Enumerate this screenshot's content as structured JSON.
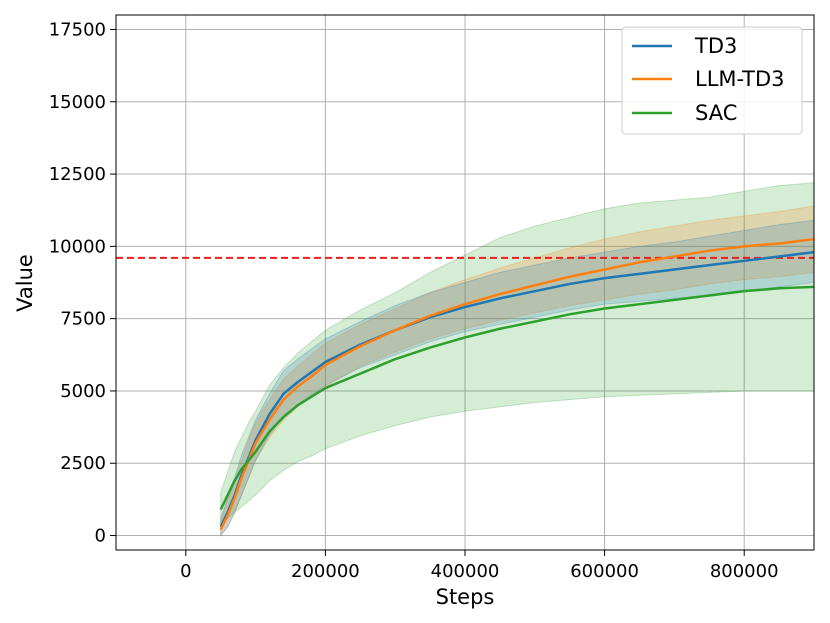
{
  "chart_data": {
    "type": "line",
    "xlabel": "Steps",
    "ylabel": "Value",
    "xlim": [
      -100000,
      900000
    ],
    "ylim": [
      -500,
      18000
    ],
    "x_ticks": [
      0,
      200000,
      400000,
      600000,
      800000
    ],
    "y_ticks": [
      0,
      2500,
      5000,
      7500,
      10000,
      12500,
      15000,
      17500
    ],
    "grid": true,
    "legend": {
      "position": "top-right",
      "entries": [
        "TD3",
        "LLM-TD3",
        "SAC"
      ]
    },
    "threshold": {
      "value": 9600,
      "color": "#ee1c1c",
      "style": "dashed"
    },
    "x": [
      50000,
      60000,
      70000,
      80000,
      90000,
      100000,
      120000,
      140000,
      160000,
      180000,
      200000,
      250000,
      300000,
      350000,
      400000,
      450000,
      500000,
      550000,
      600000,
      650000,
      700000,
      750000,
      800000,
      850000,
      900000
    ],
    "series": [
      {
        "name": "TD3",
        "color": "#1f77b4",
        "values": [
          300,
          800,
          1400,
          2100,
          2700,
          3300,
          4200,
          4900,
          5300,
          5650,
          6000,
          6600,
          7100,
          7550,
          7900,
          8200,
          8450,
          8700,
          8900,
          9050,
          9200,
          9350,
          9500,
          9650,
          9800
        ],
        "lower": [
          0,
          300,
          800,
          1400,
          2000,
          2600,
          3500,
          4100,
          4500,
          4850,
          5200,
          5800,
          6250,
          6700,
          7050,
          7300,
          7550,
          7800,
          8000,
          8100,
          8200,
          8300,
          8450,
          8600,
          8750
        ],
        "upper": [
          600,
          1300,
          2000,
          2800,
          3400,
          4000,
          4900,
          5700,
          6100,
          6450,
          6800,
          7400,
          7950,
          8400,
          8750,
          9100,
          9350,
          9600,
          9800,
          10000,
          10150,
          10350,
          10550,
          10750,
          10900
        ]
      },
      {
        "name": "LLM-TD3",
        "color": "#ff7f0e",
        "values": [
          200,
          700,
          1300,
          2000,
          2600,
          3200,
          4000,
          4700,
          5150,
          5500,
          5900,
          6550,
          7100,
          7600,
          8000,
          8350,
          8650,
          8950,
          9200,
          9450,
          9650,
          9850,
          10000,
          10100,
          10250
        ],
        "lower": [
          0,
          300,
          800,
          1400,
          2000,
          2600,
          3400,
          4000,
          4450,
          4800,
          5150,
          5850,
          6350,
          6800,
          7150,
          7450,
          7700,
          7950,
          8150,
          8350,
          8500,
          8700,
          8850,
          8950,
          9100
        ],
        "upper": [
          500,
          1200,
          1900,
          2600,
          3300,
          3900,
          4700,
          5400,
          5850,
          6250,
          6650,
          7300,
          7850,
          8400,
          8850,
          9250,
          9600,
          9950,
          10250,
          10500,
          10700,
          10900,
          11050,
          11200,
          11400
        ]
      },
      {
        "name": "SAC",
        "color": "#2ca02c",
        "values": [
          900,
          1400,
          1900,
          2300,
          2600,
          2900,
          3600,
          4100,
          4500,
          4800,
          5100,
          5600,
          6100,
          6500,
          6850,
          7150,
          7400,
          7650,
          7850,
          8000,
          8150,
          8300,
          8450,
          8550,
          8600
        ],
        "lower": [
          300,
          600,
          800,
          1000,
          1200,
          1400,
          1900,
          2250,
          2550,
          2750,
          3000,
          3450,
          3800,
          4100,
          4300,
          4450,
          4600,
          4700,
          4800,
          4850,
          4900,
          4950,
          5000,
          5000,
          5000
        ],
        "upper": [
          1500,
          2200,
          2900,
          3400,
          3900,
          4300,
          5200,
          5800,
          6300,
          6700,
          7100,
          7800,
          8400,
          9100,
          9700,
          10300,
          10700,
          11000,
          11300,
          11500,
          11600,
          11700,
          11900,
          12100,
          12200
        ]
      }
    ]
  }
}
